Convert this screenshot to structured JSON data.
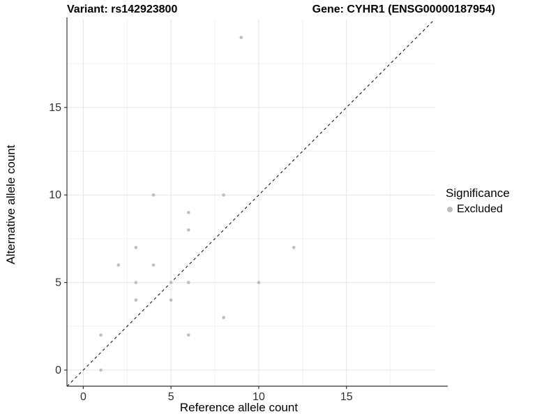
{
  "header": {
    "left_title": "Variant: rs142923800",
    "right_title": "Gene: CYHR1 (ENSG00000187954)"
  },
  "legend": {
    "title": "Significance",
    "items": [
      {
        "label": "Excluded",
        "color": "#bdbdbd"
      }
    ]
  },
  "chart_data": {
    "type": "scatter",
    "title": "Variant: rs142923800 — Gene: CYHR1 (ENSG00000187954)",
    "xlabel": "Reference allele count",
    "ylabel": "Alternative allele count",
    "xlim": [
      -0.93,
      20.02
    ],
    "ylim": [
      -0.92,
      20.02
    ],
    "x_ticks": [
      0,
      5,
      10,
      15
    ],
    "y_ticks": [
      0,
      5,
      10,
      15
    ],
    "x_minor_ticks": [
      2.5,
      7.5,
      12.5,
      17.5
    ],
    "y_minor_ticks": [
      2.5,
      7.5,
      12.5,
      17.5
    ],
    "grid": true,
    "legend_position": "right",
    "series": [
      {
        "name": "Excluded",
        "color": "#bdbdbd",
        "points": [
          [
            1,
            0
          ],
          [
            1,
            2
          ],
          [
            2,
            6
          ],
          [
            3,
            4
          ],
          [
            3,
            5
          ],
          [
            3,
            7
          ],
          [
            4,
            6
          ],
          [
            4,
            10
          ],
          [
            5,
            4
          ],
          [
            5,
            5
          ],
          [
            6,
            2
          ],
          [
            6,
            5
          ],
          [
            6,
            8
          ],
          [
            6,
            9
          ],
          [
            8,
            3
          ],
          [
            8,
            10
          ],
          [
            9,
            19
          ],
          [
            10,
            5
          ],
          [
            12,
            7
          ]
        ]
      }
    ],
    "reference_line": {
      "type": "identity",
      "equation": "y = x",
      "style": "dashed",
      "color": "#000000"
    }
  },
  "style": {
    "point_color": "#bdbdbd",
    "grid_major_color": "#e4e4e4",
    "grid_minor_color": "#f1f1f1",
    "axis_line_color": "#333333",
    "tick_label_color": "#303030"
  }
}
